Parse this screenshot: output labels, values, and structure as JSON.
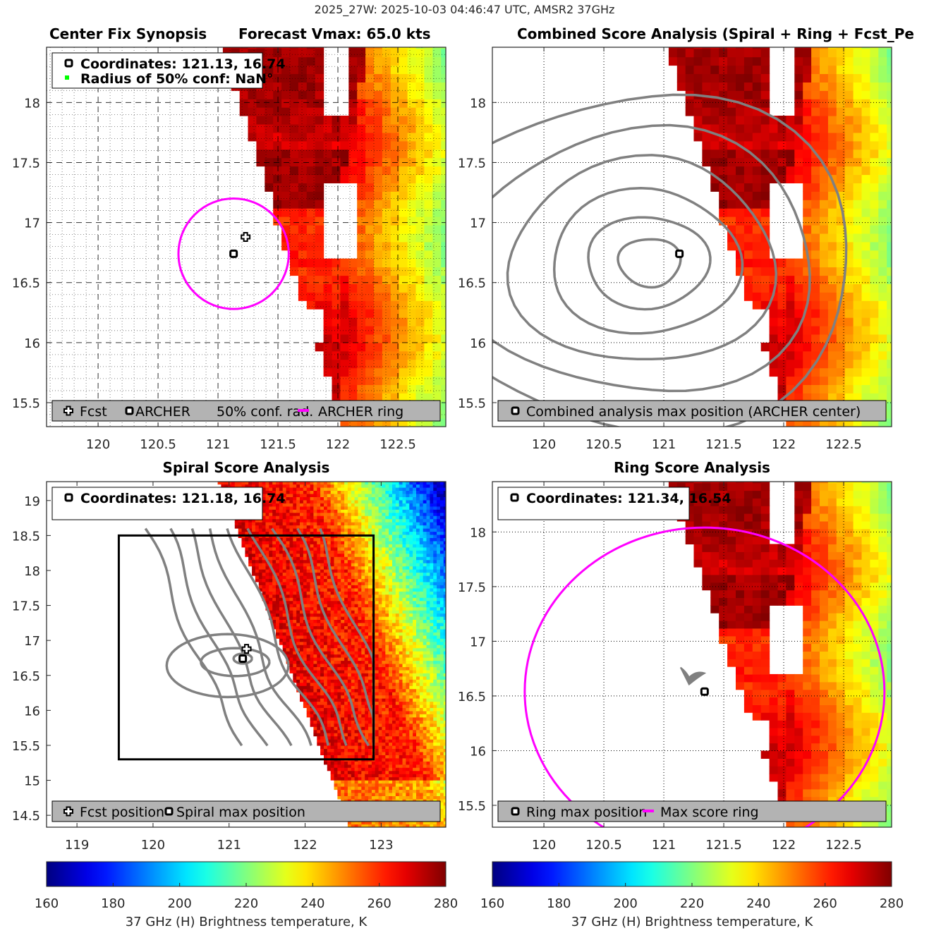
{
  "suptitle": "2025_27W: 2025-10-03 04:46:47 UTC, AMSR2 37GHz",
  "colors": {
    "fcst_marker": "#ffffff",
    "archer_marker": "#000000",
    "ring": "#ff00ff",
    "contour": "#808080",
    "legend_bg": "#b3b3b3",
    "conf_marker": "#00ff00"
  },
  "chart_data": [
    {
      "id": "center-fix",
      "type": "heatmap",
      "title_left": "Center Fix Synopsis",
      "title_right": "Forecast Vmax: 65.0 kts",
      "xlim": [
        119.57,
        122.9
      ],
      "ylim": [
        15.3,
        18.46
      ],
      "xticks": [
        120,
        120.5,
        121,
        121.5,
        122,
        122.5
      ],
      "yticks": [
        15.5,
        16,
        16.5,
        17,
        17.5,
        18
      ],
      "grid": "dashed-major-dotted-minor",
      "info_box": [
        "Coordinates: 121.13, 16.74",
        "Radius of 50% conf: NaN°"
      ],
      "markers": {
        "fcst": [
          121.23,
          16.88
        ],
        "archer": [
          121.13,
          16.74
        ]
      },
      "ring": {
        "center": [
          121.13,
          16.74
        ],
        "radius_deg": 0.46
      },
      "legend": [
        "Fcst",
        "ARCHER",
        "50% conf. rad.",
        "ARCHER ring"
      ],
      "legend_placement": "bottom"
    },
    {
      "id": "combined",
      "type": "heatmap",
      "title": "Combined Score Analysis (Spiral + Ring + Fcst_Pe",
      "xlim": [
        119.57,
        122.9
      ],
      "ylim": [
        15.3,
        18.46
      ],
      "xticks": [
        120,
        120.5,
        121,
        121.5,
        122,
        122.5
      ],
      "yticks": [
        15.5,
        16,
        16.5,
        17,
        17.5,
        18
      ],
      "grid": "dotted",
      "markers": {
        "archer": [
          121.13,
          16.74
        ]
      },
      "contour_center": [
        120.9,
        16.67
      ],
      "legend": [
        "Combined analysis max position (ARCHER center)"
      ],
      "legend_placement": "bottom"
    },
    {
      "id": "spiral",
      "type": "heatmap",
      "title": "Spiral Score Analysis",
      "xlim": [
        118.6,
        123.85
      ],
      "ylim": [
        14.33,
        19.27
      ],
      "xticks": [
        119,
        120,
        121,
        122,
        123
      ],
      "yticks": [
        14.5,
        15,
        15.5,
        16,
        16.5,
        17,
        17.5,
        18,
        18.5,
        19
      ],
      "grid": "none",
      "info_box": [
        "Coordinates: 121.18, 16.74"
      ],
      "markers": {
        "fcst": [
          121.23,
          16.88
        ],
        "spiral_max": [
          121.18,
          16.74
        ]
      },
      "search_box": {
        "x": [
          119.55,
          122.9
        ],
        "y": [
          15.3,
          18.5
        ]
      },
      "legend": [
        "Fcst position",
        "Spiral max position"
      ],
      "legend_placement": "bottom"
    },
    {
      "id": "ring",
      "type": "heatmap",
      "title": "Ring Score Analysis",
      "xlim": [
        119.57,
        122.9
      ],
      "ylim": [
        15.3,
        18.46
      ],
      "xticks": [
        120,
        120.5,
        121,
        121.5,
        122,
        122.5
      ],
      "yticks": [
        15.5,
        16,
        16.5,
        17,
        17.5,
        18
      ],
      "grid": "dotted",
      "info_box": [
        "Coordinates: 121.34, 16.54"
      ],
      "markers": {
        "ring_max": [
          121.34,
          16.54
        ]
      },
      "ring": {
        "center": [
          121.34,
          16.54
        ],
        "radius_deg": 1.5
      },
      "legend": [
        "Ring max position",
        "Max score ring"
      ],
      "legend_placement": "bottom"
    }
  ],
  "colorbar": {
    "label": "37 GHz (H) Brightness temperature, K",
    "range": [
      160,
      280
    ],
    "ticks": [
      160,
      180,
      200,
      220,
      240,
      260,
      280
    ],
    "colormap": "jet"
  }
}
